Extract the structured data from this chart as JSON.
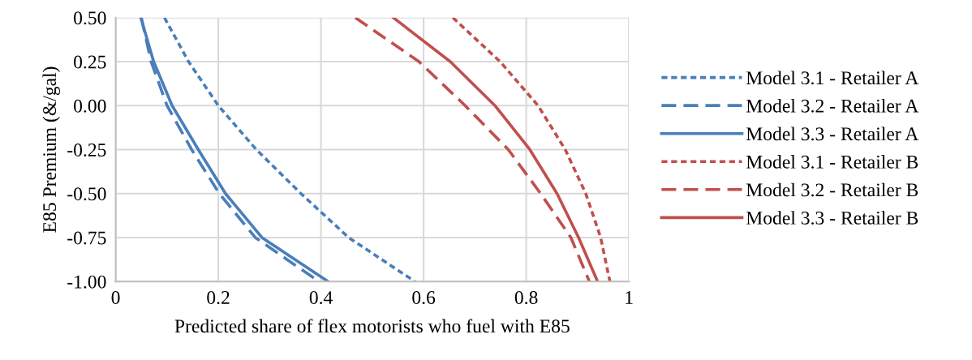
{
  "chart_data": {
    "type": "line",
    "xlabel": "Predicted share of flex motorists who fuel with E85",
    "ylabel": "E85 Premium (&/gal)",
    "xlim": [
      0,
      1
    ],
    "xticks": [
      0,
      0.2,
      0.4,
      0.6,
      0.8,
      1
    ],
    "ylim": [
      -1,
      0.5
    ],
    "yticks": [
      {
        "value": -1,
        "label": "-1.00"
      },
      {
        "value": -0.75,
        "label": "-0.75"
      },
      {
        "value": -0.5,
        "label": "-0.50"
      },
      {
        "value": -0.25,
        "label": "-0.25"
      },
      {
        "value": 0,
        "label": "0.00"
      },
      {
        "value": 0.25,
        "label": "0.25"
      },
      {
        "value": 0.5,
        "label": "0.50"
      }
    ],
    "grid": true,
    "legend": "right",
    "marker": "none",
    "series": [
      {
        "name": "Model 3.1 - Retailer A",
        "color": "#4a7ebb",
        "line_style": "dotted",
        "x": [
          0.095,
          0.142,
          0.2,
          0.274,
          0.361,
          0.454,
          0.583
        ],
        "values": [
          0.5,
          0.25,
          0,
          -0.25,
          -0.5,
          -0.75,
          -1
        ]
      },
      {
        "name": "Model 3.2 - Retailer A",
        "color": "#4a7ebb",
        "line_style": "dashed",
        "x": [
          0.05,
          0.069,
          0.1,
          0.148,
          0.202,
          0.272,
          0.396
        ],
        "values": [
          0.5,
          0.25,
          0,
          -0.25,
          -0.5,
          -0.75,
          -1
        ]
      },
      {
        "name": "Model 3.3 - Retailer A",
        "color": "#4a7ebb",
        "line_style": "solid",
        "x": [
          0.049,
          0.074,
          0.11,
          0.161,
          0.214,
          0.285,
          0.414
        ],
        "values": [
          0.5,
          0.25,
          0,
          -0.25,
          -0.5,
          -0.75,
          -1
        ]
      },
      {
        "name": "Model 3.1 - Retailer B",
        "color": "#c0504d",
        "line_style": "dotted",
        "x": [
          0.657,
          0.749,
          0.823,
          0.876,
          0.916,
          0.945,
          0.963
        ],
        "values": [
          0.5,
          0.25,
          0,
          -0.25,
          -0.5,
          -0.75,
          -1
        ]
      },
      {
        "name": "Model 3.2 - Retailer B",
        "color": "#c0504d",
        "line_style": "dashed",
        "x": [
          0.467,
          0.591,
          0.681,
          0.765,
          0.828,
          0.887,
          0.923
        ],
        "values": [
          0.5,
          0.25,
          0,
          -0.25,
          -0.5,
          -0.75,
          -1
        ]
      },
      {
        "name": "Model 3.3 - Retailer B",
        "color": "#c0504d",
        "line_style": "solid",
        "x": [
          0.541,
          0.652,
          0.739,
          0.807,
          0.86,
          0.902,
          0.939
        ],
        "values": [
          0.5,
          0.25,
          0,
          -0.25,
          -0.5,
          -0.75,
          -1
        ]
      }
    ]
  }
}
